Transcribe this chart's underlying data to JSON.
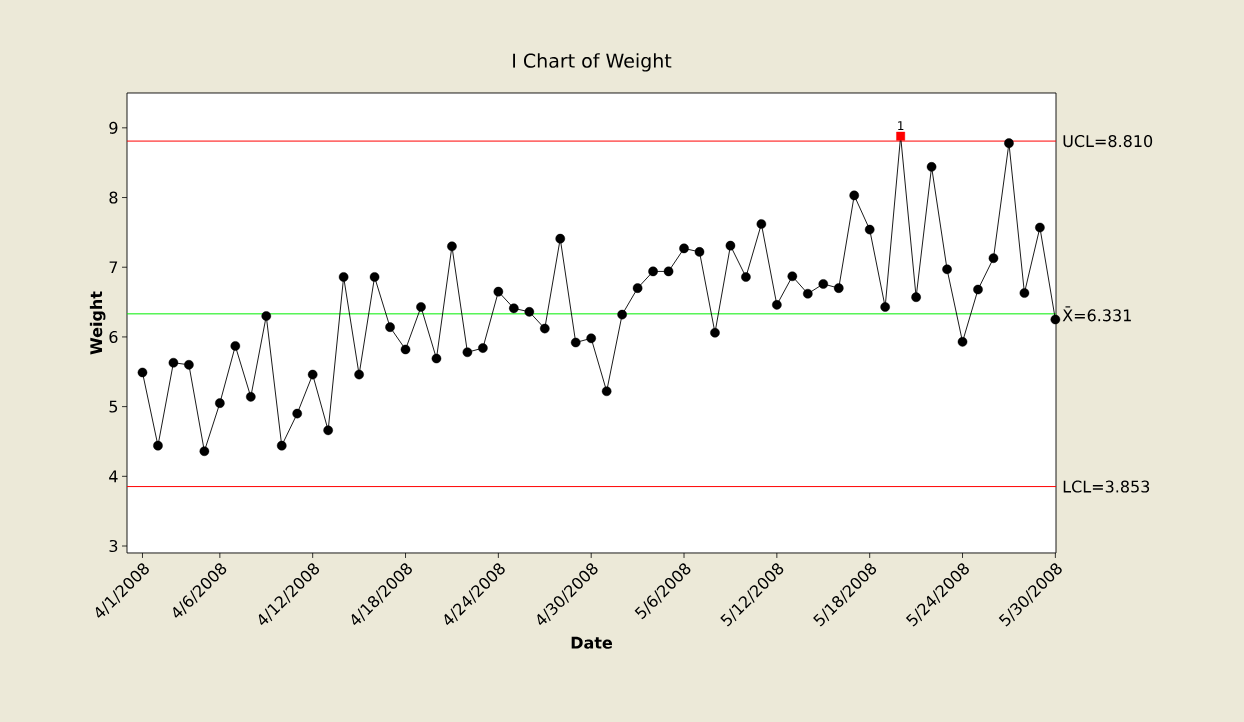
{
  "chart_data": {
    "type": "line",
    "title": "I Chart of Weight",
    "xlabel": "Date",
    "ylabel": "Weight",
    "x": [
      "2008-04-01",
      "2008-04-02",
      "2008-04-03",
      "2008-04-04",
      "2008-04-05",
      "2008-04-06",
      "2008-04-07",
      "2008-04-08",
      "2008-04-09",
      "2008-04-10",
      "2008-04-11",
      "2008-04-12",
      "2008-04-13",
      "2008-04-14",
      "2008-04-15",
      "2008-04-16",
      "2008-04-17",
      "2008-04-18",
      "2008-04-19",
      "2008-04-20",
      "2008-04-21",
      "2008-04-22",
      "2008-04-23",
      "2008-04-24",
      "2008-04-25",
      "2008-04-26",
      "2008-04-27",
      "2008-04-28",
      "2008-04-29",
      "2008-04-30",
      "2008-05-01",
      "2008-05-02",
      "2008-05-03",
      "2008-05-04",
      "2008-05-05",
      "2008-05-06",
      "2008-05-07",
      "2008-05-08",
      "2008-05-09",
      "2008-05-10",
      "2008-05-11",
      "2008-05-12",
      "2008-05-13",
      "2008-05-14",
      "2008-05-15",
      "2008-05-16",
      "2008-05-17",
      "2008-05-18",
      "2008-05-19",
      "2008-05-20",
      "2008-05-21",
      "2008-05-22",
      "2008-05-23",
      "2008-05-24",
      "2008-05-25",
      "2008-05-26",
      "2008-05-27",
      "2008-05-28",
      "2008-05-29",
      "2008-05-30"
    ],
    "series": [
      {
        "marker": "none",
        "color": "#000000",
        "values": [
          5.49,
          4.44,
          5.63,
          5.6,
          4.36,
          5.05,
          5.87,
          5.14,
          6.3,
          4.44,
          4.9,
          5.46,
          4.66,
          6.86,
          5.46,
          6.86,
          6.14,
          5.82,
          6.43,
          5.69,
          7.3,
          5.78,
          5.84,
          6.65,
          6.41,
          6.36,
          6.12,
          7.41,
          5.92,
          5.98,
          5.22,
          6.32,
          6.7,
          6.94,
          6.94,
          7.27,
          7.22,
          6.06,
          7.31,
          6.86,
          7.62,
          6.46,
          6.87,
          6.62,
          6.76,
          6.7,
          8.03,
          7.54,
          6.43,
          8.88,
          6.57,
          8.44,
          6.97,
          5.93,
          6.68,
          7.13,
          8.78,
          6.63,
          7.57,
          6.25
        ]
      },
      {
        "type": "scatter",
        "marker": "circle",
        "color": "#000000",
        "values": [
          5.49,
          4.44,
          5.63,
          5.6,
          4.36,
          5.05,
          5.87,
          5.14,
          6.3,
          4.44,
          4.9,
          5.46,
          4.66,
          6.86,
          5.46,
          6.86,
          6.14,
          5.82,
          6.43,
          5.69,
          7.3,
          5.78,
          5.84,
          6.65,
          6.41,
          6.36,
          6.12,
          7.41,
          5.92,
          5.98,
          5.22,
          6.32,
          6.7,
          6.94,
          6.94,
          7.27,
          7.22,
          6.06,
          7.31,
          6.86,
          7.62,
          6.46,
          6.87,
          6.62,
          6.76,
          6.7,
          8.03,
          7.54,
          6.43,
          null,
          6.57,
          8.44,
          6.97,
          5.93,
          6.68,
          7.13,
          8.78,
          6.63,
          7.57,
          6.25
        ]
      },
      {
        "type": "scatter",
        "marker": "square",
        "color": "#ff0000",
        "values": [
          null,
          null,
          null,
          null,
          null,
          null,
          null,
          null,
          null,
          null,
          null,
          null,
          null,
          null,
          null,
          null,
          null,
          null,
          null,
          null,
          null,
          null,
          null,
          null,
          null,
          null,
          null,
          null,
          null,
          null,
          null,
          null,
          null,
          null,
          null,
          null,
          null,
          null,
          null,
          null,
          null,
          null,
          null,
          null,
          null,
          null,
          null,
          null,
          null,
          8.88,
          null,
          null,
          null,
          null,
          null,
          null,
          null,
          null,
          null,
          null
        ]
      }
    ],
    "xlim": [
      "2008-03-31",
      "2008-05-30T01:00"
    ],
    "xticks": [
      {
        "value": "2008-04-01",
        "label": "4/1/2008"
      },
      {
        "value": "2008-04-06",
        "label": "4/6/2008"
      },
      {
        "value": "2008-04-12",
        "label": "4/12/2008"
      },
      {
        "value": "2008-04-18",
        "label": "4/18/2008"
      },
      {
        "value": "2008-04-24",
        "label": "4/24/2008"
      },
      {
        "value": "2008-04-30",
        "label": "4/30/2008"
      },
      {
        "value": "2008-05-06",
        "label": "5/6/2008"
      },
      {
        "value": "2008-05-12",
        "label": "5/12/2008"
      },
      {
        "value": "2008-05-18",
        "label": "5/18/2008"
      },
      {
        "value": "2008-05-24",
        "label": "5/24/2008"
      },
      {
        "value": "2008-05-30",
        "label": "5/30/2008"
      }
    ],
    "ylim": [
      2.9,
      9.5
    ],
    "yticks": [
      3,
      4,
      5,
      6,
      7,
      8,
      9
    ],
    "ref_lines": [
      {
        "axis": "y",
        "value": 8.81,
        "label": "UCL=8.810",
        "color": "#ff0000"
      },
      {
        "axis": "y",
        "value": 6.331,
        "label": "X̄=6.331",
        "color": "#00ee00"
      },
      {
        "axis": "y",
        "value": 3.853,
        "label": "LCL=3.853",
        "color": "#ff0000"
      }
    ],
    "annotations": [
      {
        "text": "1",
        "x": "2008-05-20",
        "y": 8.88
      }
    ],
    "grid": false
  }
}
